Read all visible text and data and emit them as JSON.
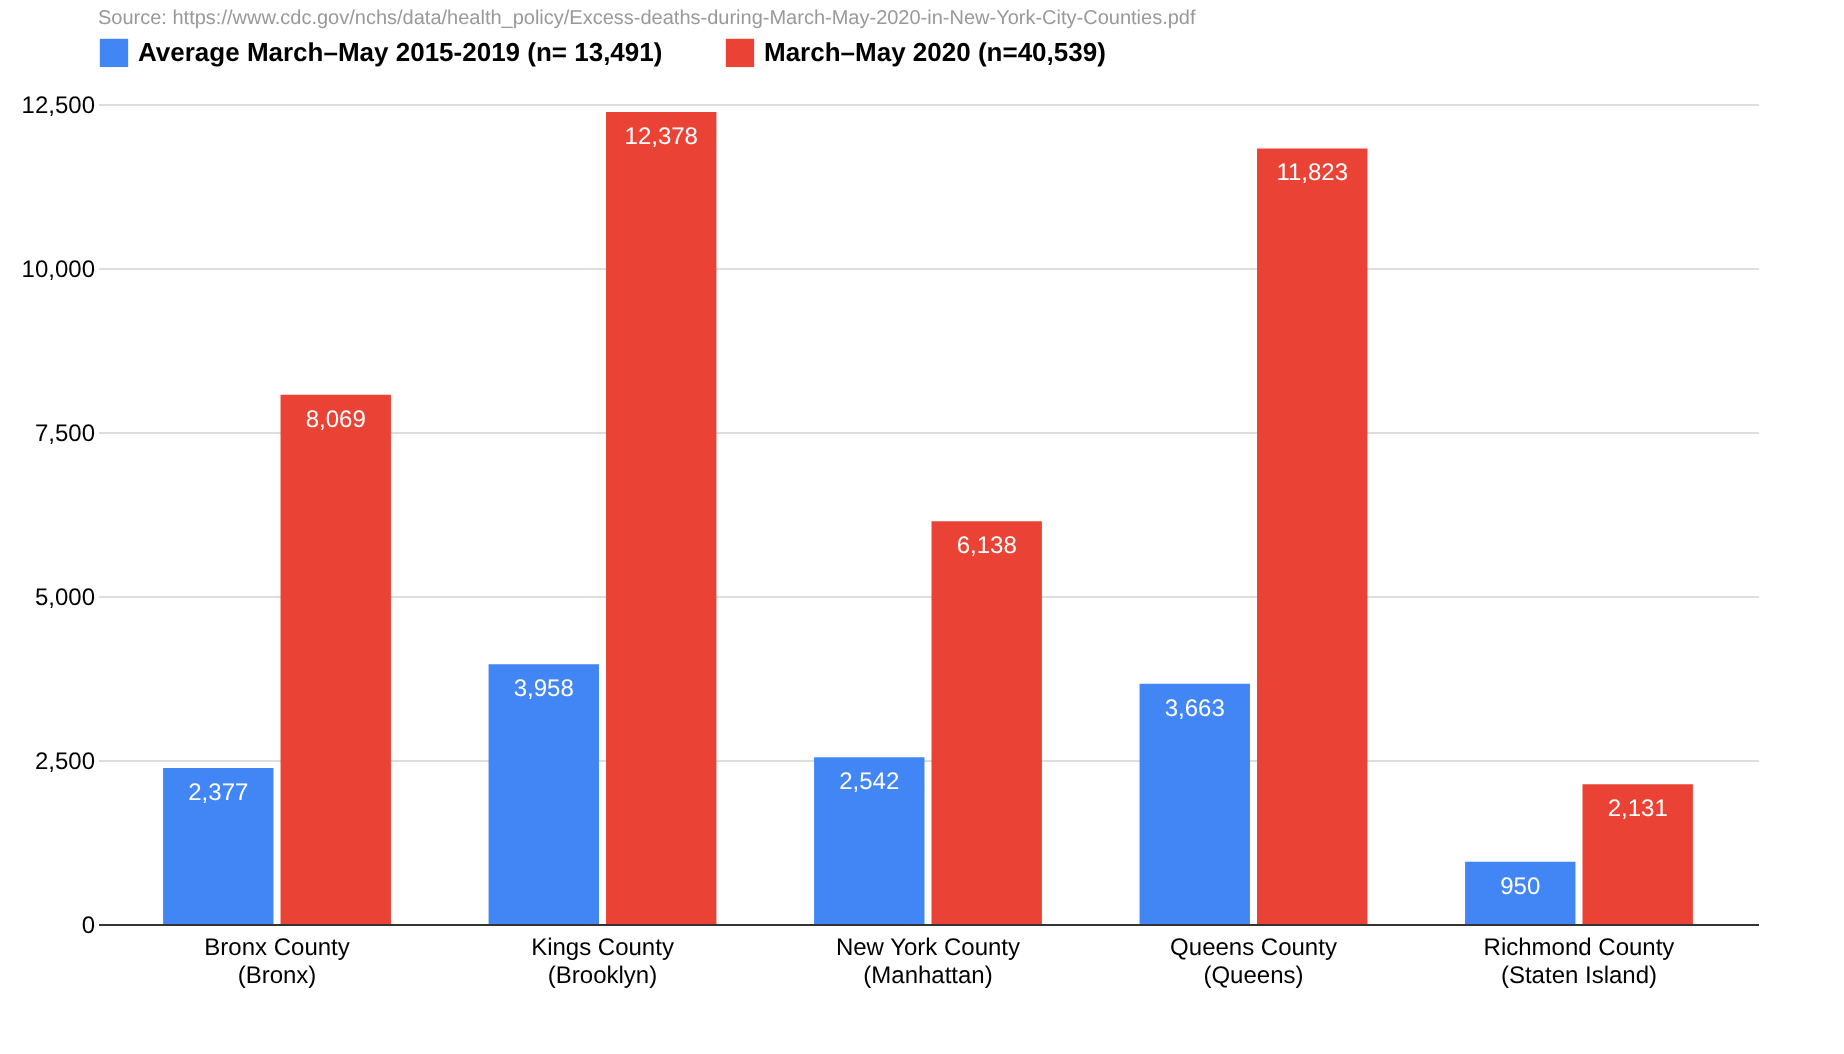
{
  "chart_data": {
    "type": "bar",
    "annotations": [
      "Source: https://www.cdc.gov/nchs/data/health_policy/Excess-deaths-during-March-May-2020-in-New-York-City-Counties.pdf"
    ],
    "categories": [
      "Bronx County (Bronx)",
      "Kings County (Brooklyn)",
      "New York County (Manhattan)",
      "Queens County (Queens)",
      "Richmond County (Staten Island)"
    ],
    "series": [
      {
        "name": "Average March–May 2015-2019 (n= 13,491)",
        "color": "#4285f4",
        "values": [
          2377,
          3958,
          2542,
          3663,
          950
        ],
        "value_labels": [
          "2,377",
          "3,958",
          "2,542",
          "3,663",
          "950"
        ]
      },
      {
        "name": "March–May 2020 (n=40,539)",
        "color": "#ea4335",
        "values": [
          8069,
          12378,
          6138,
          11823,
          2131
        ],
        "value_labels": [
          "8,069",
          "12,378",
          "6,138",
          "11,823",
          "2,131"
        ]
      }
    ],
    "ylim": [
      0,
      12500
    ],
    "yticks": [
      0,
      {
        "value": 2500,
        "label": "2,500"
      },
      {
        "value": 5000,
        "label": "5,000"
      },
      {
        "value": 7500,
        "label": "7,500"
      },
      {
        "value": 10000,
        "label": "10,000"
      },
      {
        "value": 12500,
        "label": "12,500"
      }
    ],
    "grid": "y",
    "legend": "top"
  }
}
